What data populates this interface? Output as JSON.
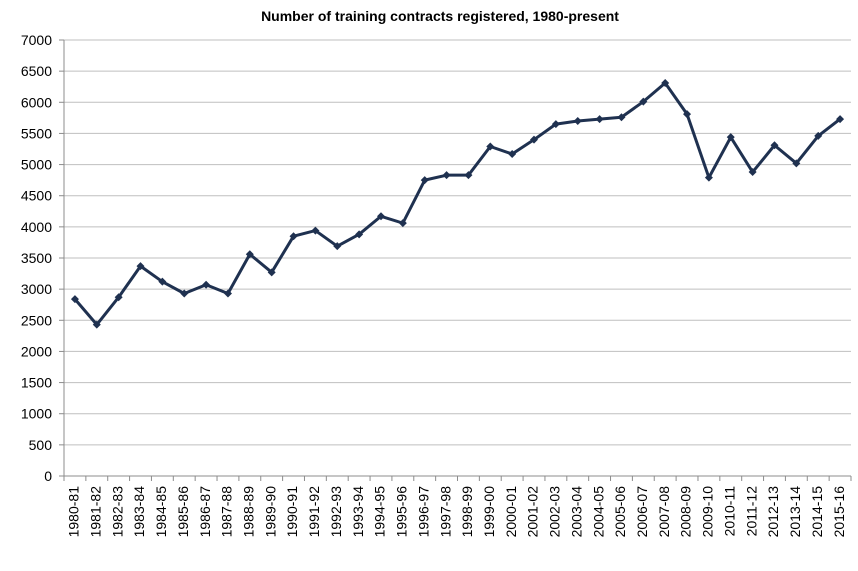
{
  "chart_data": {
    "type": "line",
    "title": "Number of training contracts registered, 1980-present",
    "xlabel": "",
    "ylabel": "",
    "ylim": [
      0,
      7000
    ],
    "ytick_step": 500,
    "grid": true,
    "legend": "none",
    "line_color": "#1f3150",
    "categories": [
      "1980-81",
      "1981-82",
      "1982-83",
      "1983-84",
      "1984-85",
      "1985-86",
      "1986-87",
      "1987-88",
      "1988-89",
      "1989-90",
      "1990-91",
      "1991-92",
      "1992-93",
      "1993-94",
      "1994-95",
      "1995-96",
      "1996-97",
      "1997-98",
      "1998-99",
      "1999-00",
      "2000-01",
      "2001-02",
      "2002-03",
      "2003-04",
      "2004-05",
      "2005-06",
      "2006-07",
      "2007-08",
      "2008-09",
      "2009-10",
      "2010-11",
      "2011-12",
      "2012-13",
      "2013-14",
      "2014-15",
      "2015-16"
    ],
    "values": [
      2840,
      2430,
      2870,
      3370,
      3120,
      2930,
      3070,
      2930,
      3560,
      3270,
      3850,
      3940,
      3690,
      3880,
      4170,
      4060,
      4750,
      4830,
      4830,
      5290,
      5170,
      5400,
      5650,
      5700,
      5730,
      5760,
      6010,
      6310,
      5810,
      4790,
      5440,
      4880,
      5310,
      5020,
      5460,
      5730
    ]
  }
}
